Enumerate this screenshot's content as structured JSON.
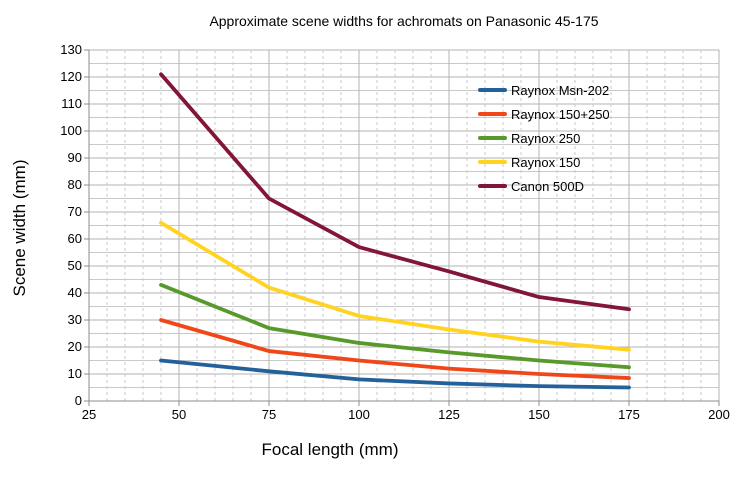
{
  "title": "Approximate scene widths for achromats on Panasonic 45-175",
  "chart_data": {
    "type": "line",
    "title": "Approximate scene widths for achromats on Panasonic 45-175",
    "xlabel": "Focal length (mm)",
    "ylabel": "Scene width (mm)",
    "x": [
      45,
      75,
      100,
      125,
      150,
      175
    ],
    "series": [
      {
        "name": "Raynox Msn-202",
        "color": "#24619B",
        "values": [
          15,
          11,
          8,
          6.5,
          5.5,
          5
        ]
      },
      {
        "name": "Raynox 150+250",
        "color": "#F04718",
        "values": [
          30,
          18.5,
          15,
          12,
          10,
          8.5
        ]
      },
      {
        "name": "Raynox 250",
        "color": "#57992B",
        "values": [
          43,
          27,
          21.5,
          18,
          15,
          12.5
        ]
      },
      {
        "name": "Raynox 150",
        "color": "#FFD320",
        "values": [
          66,
          42,
          31.5,
          26.5,
          22,
          19
        ]
      },
      {
        "name": "Canon 500D",
        "color": "#821636",
        "values": [
          121,
          75,
          57,
          48,
          38.5,
          34
        ]
      }
    ],
    "xlim": [
      25,
      200
    ],
    "ylim": [
      0,
      130
    ],
    "x_ticks": [
      25,
      50,
      75,
      100,
      125,
      150,
      175,
      200
    ],
    "y_ticks": [
      0,
      10,
      20,
      30,
      40,
      50,
      60,
      70,
      80,
      90,
      100,
      110,
      120,
      130
    ],
    "grid": {
      "x_minor_step": 5,
      "x_major_step": 25,
      "y_minor_step": 5,
      "minor_vertical_style": "dashed",
      "legend_position": "inside-top-right"
    },
    "colors": {
      "gridline_minor": "#C9C9C9",
      "gridline_major": "#B3B3B3",
      "axis": "#8C8C8C",
      "background": "#FFFFFF",
      "text": "#000000"
    }
  }
}
